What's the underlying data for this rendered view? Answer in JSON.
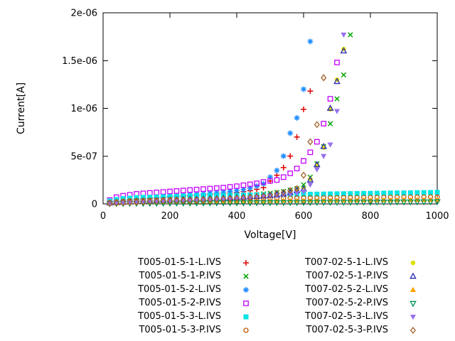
{
  "chart_data": {
    "type": "scatter",
    "title": "",
    "xlabel": "Voltage[V]",
    "ylabel": "Current[A]",
    "xlim": [
      0,
      1000
    ],
    "ylim": [
      0,
      2e-06
    ],
    "grid": false,
    "legend_position": "below-plot-two-columns",
    "x_ticks": [
      {
        "v": 0,
        "label": "0"
      },
      {
        "v": 200,
        "label": "200"
      },
      {
        "v": 400,
        "label": "400"
      },
      {
        "v": 600,
        "label": "600"
      },
      {
        "v": 800,
        "label": "800"
      },
      {
        "v": 1000,
        "label": "1000"
      }
    ],
    "y_ticks": [
      {
        "v": 0,
        "label": "0"
      },
      {
        "v": 5e-07,
        "label": "5e-07"
      },
      {
        "v": 1e-06,
        "label": "1e-06"
      },
      {
        "v": 1.5e-06,
        "label": "1.5e-06"
      },
      {
        "v": 2e-06,
        "label": "2e-06"
      }
    ],
    "i_unit_amps": 1e-07,
    "v_start": 20,
    "v_step": 20,
    "series": [
      {
        "name": "T005-01-5-1-L.IVS",
        "marker": "plus",
        "color": "#dc0000",
        "i_1e7": [
          0.15,
          0.25,
          0.33,
          0.4,
          0.47,
          0.52,
          0.57,
          0.62,
          0.67,
          0.72,
          0.76,
          0.8,
          0.85,
          0.89,
          0.93,
          0.98,
          1.03,
          1.08,
          1.14,
          1.2,
          1.28,
          1.38,
          1.52,
          1.7,
          2.4,
          3.0,
          3.8,
          5.0,
          7.0,
          9.9,
          11.8
        ]
      },
      {
        "name": "T005-01-5-1-P.IVS",
        "marker": "cross",
        "color": "#00a400",
        "i_1e7": [
          0.1,
          0.15,
          0.2,
          0.25,
          0.3,
          0.33,
          0.36,
          0.4,
          0.43,
          0.46,
          0.5,
          0.53,
          0.56,
          0.6,
          0.63,
          0.66,
          0.7,
          0.74,
          0.78,
          0.82,
          0.87,
          0.92,
          0.98,
          1.05,
          1.12,
          1.2,
          1.3,
          1.45,
          1.6,
          2.0,
          2.8,
          4.2,
          6.0,
          8.4,
          11.0,
          13.5,
          17.7
        ]
      },
      {
        "name": "T005-01-5-2-L.IVS",
        "marker": "asterisk",
        "color": "#1e8cff",
        "i_1e7": [
          0.2,
          0.3,
          0.4,
          0.5,
          0.55,
          0.6,
          0.65,
          0.7,
          0.75,
          0.8,
          0.85,
          0.9,
          0.95,
          1.0,
          1.05,
          1.1,
          1.16,
          1.24,
          1.32,
          1.4,
          1.5,
          1.65,
          1.85,
          2.1,
          2.8,
          3.5,
          5.0,
          7.4,
          9.0,
          12.0,
          17.0
        ]
      },
      {
        "name": "T005-01-5-2-P.IVS",
        "marker": "square-open",
        "color": "#c400ff",
        "i_1e7": [
          0.4,
          0.7,
          0.85,
          0.95,
          1.05,
          1.1,
          1.15,
          1.2,
          1.25,
          1.3,
          1.35,
          1.4,
          1.45,
          1.5,
          1.55,
          1.6,
          1.65,
          1.7,
          1.78,
          1.85,
          1.95,
          2.05,
          2.15,
          2.3,
          2.4,
          2.5,
          2.8,
          3.2,
          3.7,
          4.5,
          5.4,
          6.5,
          8.4,
          11.0,
          14.8
        ]
      },
      {
        "name": "T005-01-5-3-L.IVS",
        "marker": "square-filled",
        "color": "#00e5e5",
        "i_1e7": [
          0.3,
          0.45,
          0.55,
          0.6,
          0.65,
          0.68,
          0.7,
          0.72,
          0.74,
          0.76,
          0.78,
          0.8,
          0.82,
          0.84,
          0.85,
          0.86,
          0.87,
          0.88,
          0.89,
          0.9,
          0.91,
          0.92,
          0.93,
          0.94,
          0.95,
          0.96,
          0.97,
          0.98,
          0.99,
          1.0,
          1.01,
          1.02,
          1.03,
          1.04,
          1.05,
          1.06,
          1.07,
          1.08,
          1.09,
          1.1,
          1.11,
          1.12,
          1.13,
          1.14,
          1.15,
          1.16,
          1.17,
          1.18,
          1.19,
          1.2
        ]
      },
      {
        "name": "T005-01-5-3-P.IVS",
        "marker": "circle-open",
        "color": "#c05a00",
        "i_1e7": [
          0.15,
          0.22,
          0.28,
          0.32,
          0.35,
          0.37,
          0.39,
          0.41,
          0.43,
          0.45,
          0.46,
          0.47,
          0.48,
          0.49,
          0.5,
          0.51,
          0.52,
          0.53,
          0.54,
          0.55,
          0.56,
          0.57,
          0.58,
          0.58,
          0.59,
          0.6,
          0.6,
          0.61,
          0.62,
          0.62,
          0.63,
          0.63,
          0.64,
          0.64,
          0.65,
          0.65,
          0.66,
          0.66,
          0.67,
          0.67,
          0.68,
          0.68,
          0.69,
          0.69,
          0.7,
          0.7,
          0.71,
          0.71,
          0.72,
          0.72
        ]
      },
      {
        "name": "T007-02-5-1-L.IVS",
        "marker": "circle-filled",
        "color": "#dede00",
        "i_1e7": [
          0.08,
          0.12,
          0.16,
          0.2,
          0.24,
          0.27,
          0.3,
          0.33,
          0.36,
          0.39,
          0.42,
          0.45,
          0.48,
          0.5,
          0.52,
          0.55,
          0.58,
          0.61,
          0.64,
          0.67,
          0.7,
          0.74,
          0.78,
          0.83,
          0.88,
          0.95,
          1.05,
          1.2,
          1.4,
          1.6,
          2.6,
          4.0,
          5.9,
          9.9,
          13.0,
          16.2
        ]
      },
      {
        "name": "T007-02-5-1-P.IVS",
        "marker": "triangle-up-open",
        "color": "#2828b4",
        "i_1e7": [
          0.07,
          0.11,
          0.15,
          0.19,
          0.23,
          0.26,
          0.29,
          0.32,
          0.35,
          0.38,
          0.41,
          0.44,
          0.47,
          0.49,
          0.51,
          0.54,
          0.57,
          0.6,
          0.63,
          0.66,
          0.69,
          0.73,
          0.77,
          0.82,
          0.87,
          0.93,
          1.03,
          1.18,
          1.38,
          1.55,
          2.5,
          4.1,
          6.0,
          10.0,
          12.8,
          16.0
        ]
      },
      {
        "name": "T007-02-5-2-L.IVS",
        "marker": "triangle-up-filled",
        "color": "#ffa000",
        "i_1e7": [
          0.08,
          0.11,
          0.14,
          0.16,
          0.18,
          0.19,
          0.2,
          0.21,
          0.22,
          0.23,
          0.24,
          0.25,
          0.25,
          0.26,
          0.27,
          0.27,
          0.28,
          0.28,
          0.29,
          0.29,
          0.3,
          0.3,
          0.31,
          0.31,
          0.32,
          0.32,
          0.33,
          0.33,
          0.34,
          0.34,
          0.35,
          0.35,
          0.36,
          0.36,
          0.37,
          0.37,
          0.38,
          0.38,
          0.39,
          0.39,
          0.4,
          0.4,
          0.41,
          0.41,
          0.42,
          0.42,
          0.43,
          0.43,
          0.44,
          0.44
        ]
      },
      {
        "name": "T007-02-5-2-P.IVS",
        "marker": "triangle-down-open",
        "color": "#00945a",
        "i_1e7": [
          0.03,
          0.04,
          0.05,
          0.06,
          0.07,
          0.07,
          0.08,
          0.08,
          0.09,
          0.09,
          0.1,
          0.1,
          0.1,
          0.11,
          0.11,
          0.11,
          0.12,
          0.12,
          0.12,
          0.13,
          0.13,
          0.13,
          0.14,
          0.14,
          0.14,
          0.15,
          0.15,
          0.15,
          0.16,
          0.16,
          0.16,
          0.17,
          0.17,
          0.17,
          0.18,
          0.18,
          0.18,
          0.19,
          0.19,
          0.19,
          0.2,
          0.2,
          0.2,
          0.21,
          0.21,
          0.21,
          0.22,
          0.22,
          0.22,
          0.23
        ]
      },
      {
        "name": "T007-02-5-3-L.IVS",
        "marker": "triangle-down-filled",
        "color": "#9670f0",
        "i_1e7": [
          0.05,
          0.08,
          0.11,
          0.14,
          0.17,
          0.2,
          0.23,
          0.26,
          0.29,
          0.32,
          0.34,
          0.36,
          0.38,
          0.4,
          0.42,
          0.45,
          0.48,
          0.51,
          0.54,
          0.57,
          0.6,
          0.64,
          0.68,
          0.73,
          0.79,
          0.86,
          0.95,
          1.05,
          1.15,
          1.3,
          2.0,
          3.6,
          5.0,
          6.2,
          9.7,
          17.7
        ]
      },
      {
        "name": "T007-02-5-3-P.IVS",
        "marker": "diamond-open",
        "color": "#a0602a",
        "i_1e7": [
          0.06,
          0.1,
          0.13,
          0.16,
          0.19,
          0.22,
          0.25,
          0.28,
          0.3,
          0.32,
          0.34,
          0.36,
          0.38,
          0.4,
          0.43,
          0.46,
          0.49,
          0.52,
          0.56,
          0.6,
          0.65,
          0.7,
          0.77,
          0.85,
          0.95,
          1.1,
          1.2,
          1.4,
          1.6,
          3.0,
          6.5,
          8.3,
          13.2
        ]
      }
    ]
  }
}
